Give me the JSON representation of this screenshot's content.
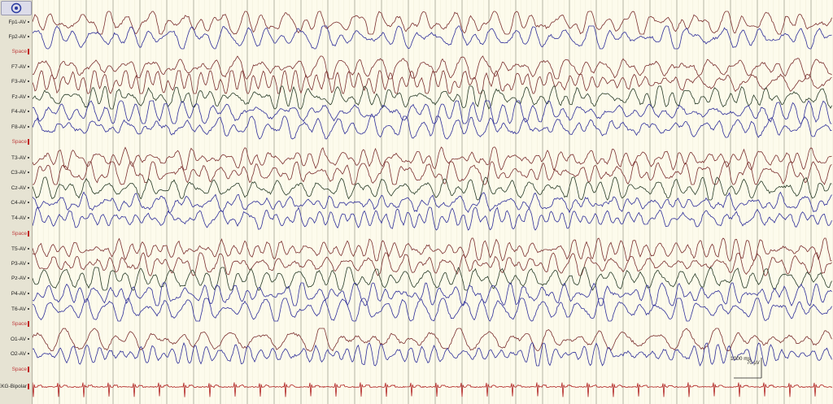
{
  "toolbar": {
    "montage_icon": "target-icon"
  },
  "channels": [
    {
      "label": "Fp1-AV",
      "type": "eeg",
      "color": "#7a2e2e"
    },
    {
      "label": "Fp2-AV",
      "type": "eeg",
      "color": "#2e2e9a"
    },
    {
      "label": "Space",
      "type": "space"
    },
    {
      "label": "F7-AV",
      "type": "eeg",
      "color": "#7a2e2e"
    },
    {
      "label": "F3-AV",
      "type": "eeg",
      "color": "#7a2e2e"
    },
    {
      "label": "Fz-AV",
      "type": "eeg",
      "color": "#263a26"
    },
    {
      "label": "F4-AV",
      "type": "eeg",
      "color": "#2e2e9a"
    },
    {
      "label": "F8-AV",
      "type": "eeg",
      "color": "#2e2e9a"
    },
    {
      "label": "Space",
      "type": "space"
    },
    {
      "label": "T3-AV",
      "type": "eeg",
      "color": "#7a2e2e"
    },
    {
      "label": "C3-AV",
      "type": "eeg",
      "color": "#7a2e2e"
    },
    {
      "label": "Cz-AV",
      "type": "eeg",
      "color": "#263a26"
    },
    {
      "label": "C4-AV",
      "type": "eeg",
      "color": "#2e2e9a"
    },
    {
      "label": "T4-AV",
      "type": "eeg",
      "color": "#2e2e9a"
    },
    {
      "label": "Space",
      "type": "space"
    },
    {
      "label": "T5-AV",
      "type": "eeg",
      "color": "#7a2e2e"
    },
    {
      "label": "P3-AV",
      "type": "eeg",
      "color": "#7a2e2e"
    },
    {
      "label": "Pz-AV",
      "type": "eeg",
      "color": "#263a26"
    },
    {
      "label": "P4-AV",
      "type": "eeg",
      "color": "#2e2e9a"
    },
    {
      "label": "T6-AV",
      "type": "eeg",
      "color": "#2e2e9a"
    },
    {
      "label": "Space",
      "type": "space"
    },
    {
      "label": "O1-AV",
      "type": "eeg",
      "color": "#7a2e2e"
    },
    {
      "label": "O2-AV",
      "type": "eeg",
      "color": "#2e2e9a"
    },
    {
      "label": "Space",
      "type": "space"
    },
    {
      "label": "EKG-Bipolar",
      "type": "ekg",
      "color": "#b02020"
    }
  ],
  "scale": {
    "time_label": "1000 ms",
    "amplitude_label": "70 µV"
  },
  "colors": {
    "background": "#fdfbec",
    "sidebar": "#e6e3d3",
    "second_line": "#9a9a8a"
  }
}
